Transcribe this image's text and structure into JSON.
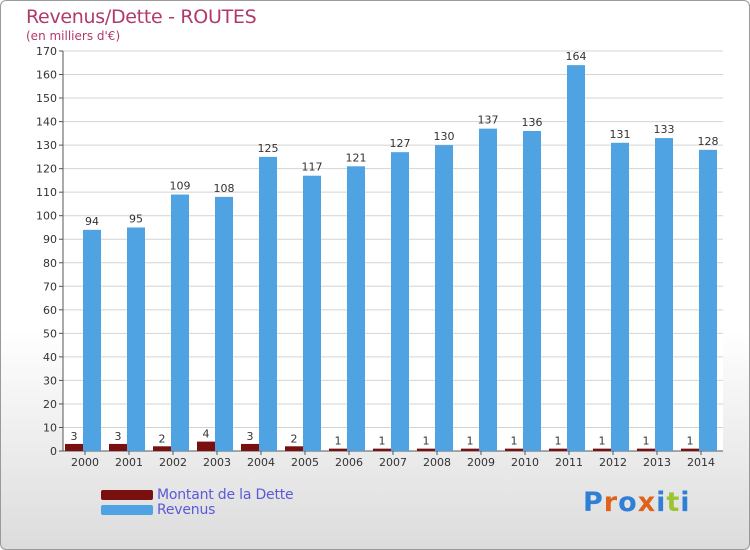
{
  "header": {
    "title": "Revenus/Dette - ROUTES",
    "subtitle": "(en milliers d'€)"
  },
  "colors": {
    "revenus": "#4fa3e3",
    "dette": "#7a0f0f",
    "title": "#b03a6a",
    "legend_text": "#5a5ad8",
    "axis_text": "#333333"
  },
  "legend": {
    "dette_label": "Montant de la Dette",
    "revenus_label": "Revenus"
  },
  "logo": {
    "text": "Proxiti",
    "letter_colors": [
      "#2f7fd6",
      "#e0611a",
      "#2f7fd6",
      "#e0611a",
      "#2f7fd6",
      "#9bc531",
      "#2f7fd6"
    ]
  },
  "chart_data": {
    "type": "bar",
    "title": "Revenus/Dette - ROUTES",
    "subtitle": "(en milliers d'€)",
    "categories": [
      "2000",
      "2001",
      "2002",
      "2003",
      "2004",
      "2005",
      "2006",
      "2007",
      "2008",
      "2009",
      "2010",
      "2011",
      "2012",
      "2013",
      "2014"
    ],
    "series": [
      {
        "name": "Montant de la Dette",
        "values": [
          3,
          3,
          2,
          4,
          3,
          2,
          1,
          1,
          1,
          1,
          1,
          1,
          1,
          1,
          1
        ]
      },
      {
        "name": "Revenus",
        "values": [
          94,
          95,
          109,
          108,
          125,
          117,
          121,
          127,
          130,
          137,
          136,
          164,
          131,
          133,
          128
        ]
      }
    ],
    "ylim": [
      0,
      170
    ],
    "yticks": [
      0,
      10,
      20,
      30,
      40,
      50,
      60,
      70,
      80,
      90,
      100,
      110,
      120,
      130,
      140,
      150,
      160,
      170
    ],
    "grid": true,
    "legend_position": "bottom-left"
  }
}
